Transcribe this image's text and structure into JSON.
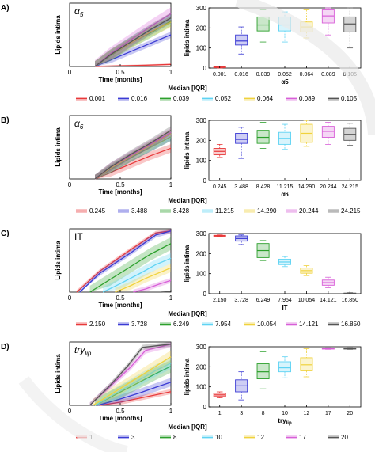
{
  "chart_data": [
    {
      "panel": "A)",
      "param_label": "α5",
      "line_plot": {
        "type": "line",
        "xlabel": "Time [months]",
        "ylabel": "Lipids intima",
        "xticks": [
          0,
          0.5,
          1
        ],
        "yticks": [],
        "xlim": [
          0,
          1
        ],
        "ylim": [
          0,
          300
        ],
        "series": [
          {
            "color": "#e8393a",
            "band": 4,
            "x": [
              0.25,
              0.5,
              0.75,
              1.0
            ],
            "y": [
              0,
              3,
              6,
              10
            ]
          },
          {
            "color": "#3b3bd4",
            "band": 15,
            "x": [
              0.25,
              0.4,
              0.6,
              0.8,
              1.0
            ],
            "y": [
              0,
              30,
              70,
              110,
              150
            ]
          },
          {
            "color": "#2ca02c",
            "band": 25,
            "x": [
              0.25,
              0.4,
              0.6,
              0.8,
              1.0
            ],
            "y": [
              0,
              50,
              110,
              160,
              215
            ]
          },
          {
            "color": "#5fd3f3",
            "band": 25,
            "x": [
              0.25,
              0.4,
              0.6,
              0.8,
              1.0
            ],
            "y": [
              0,
              55,
              115,
              170,
              225
            ]
          },
          {
            "color": "#f0d23c",
            "band": 25,
            "x": [
              0.25,
              0.4,
              0.6,
              0.8,
              1.0
            ],
            "y": [
              0,
              55,
              110,
              165,
              210
            ]
          },
          {
            "color": "#d85fd8",
            "band": 30,
            "x": [
              0.25,
              0.4,
              0.6,
              0.8,
              1.0
            ],
            "y": [
              0,
              60,
              125,
              190,
              250
            ]
          },
          {
            "color": "#555555",
            "band": 25,
            "x": [
              0.25,
              0.4,
              0.6,
              0.8,
              1.0
            ],
            "y": [
              0,
              55,
              115,
              175,
              230
            ]
          }
        ]
      },
      "box_plot": {
        "type": "box",
        "ylabel": "lipids intima",
        "xlabel": "α5",
        "ylim": [
          0,
          300
        ],
        "yticks": [
          0,
          100,
          200,
          300
        ],
        "categories": [
          "0.001",
          "0.016",
          "0.039",
          "0.052",
          "0.064",
          "0.089",
          "0.105"
        ],
        "colors": [
          "#e8393a",
          "#3b3bd4",
          "#2ca02c",
          "#5fd3f3",
          "#f0d23c",
          "#d85fd8",
          "#555555"
        ],
        "boxes": [
          {
            "min": 0,
            "q1": 2,
            "median": 5,
            "q3": 8,
            "max": 10
          },
          {
            "min": 70,
            "q1": 115,
            "median": 135,
            "q3": 165,
            "max": 205
          },
          {
            "min": 130,
            "q1": 185,
            "median": 215,
            "q3": 255,
            "max": 290
          },
          {
            "min": 130,
            "q1": 185,
            "median": 215,
            "q3": 255,
            "max": 280
          },
          {
            "min": 150,
            "q1": 180,
            "median": 205,
            "q3": 230,
            "max": 290
          },
          {
            "min": 165,
            "q1": 225,
            "median": 260,
            "q3": 290,
            "max": 300
          },
          {
            "min": 100,
            "q1": 180,
            "median": 220,
            "q3": 255,
            "max": 300
          }
        ]
      },
      "legend": {
        "title": "Median [IQR]",
        "entries": [
          "0.001",
          "0.016",
          "0.039",
          "0.052",
          "0.064",
          "0.089",
          "0.105"
        ]
      }
    },
    {
      "panel": "B)",
      "param_label": "α6",
      "line_plot": {
        "type": "line",
        "xlabel": "Time [months]",
        "ylabel": "Lipids intima",
        "xticks": [
          0,
          0.5,
          1
        ],
        "yticks": [],
        "xlim": [
          0,
          1
        ],
        "ylim": [
          0,
          300
        ],
        "series": [
          {
            "color": "#e8393a",
            "band": 20,
            "x": [
              0.25,
              0.4,
              0.6,
              0.8,
              1.0
            ],
            "y": [
              0,
              30,
              70,
              110,
              145
            ]
          },
          {
            "color": "#3b3bd4",
            "band": 20,
            "x": [
              0.25,
              0.4,
              0.6,
              0.8,
              1.0
            ],
            "y": [
              0,
              45,
              100,
              150,
              200
            ]
          },
          {
            "color": "#2ca02c",
            "band": 20,
            "x": [
              0.25,
              0.4,
              0.6,
              0.8,
              1.0
            ],
            "y": [
              0,
              45,
              100,
              150,
              200
            ]
          },
          {
            "color": "#5fd3f3",
            "band": 20,
            "x": [
              0.25,
              0.4,
              0.6,
              0.8,
              1.0
            ],
            "y": [
              0,
              50,
              105,
              160,
              210
            ]
          },
          {
            "color": "#f0d23c",
            "band": 20,
            "x": [
              0.25,
              0.4,
              0.6,
              0.8,
              1.0
            ],
            "y": [
              0,
              50,
              105,
              160,
              215
            ]
          },
          {
            "color": "#d85fd8",
            "band": 20,
            "x": [
              0.25,
              0.4,
              0.6,
              0.8,
              1.0
            ],
            "y": [
              0,
              55,
              110,
              165,
              220
            ]
          },
          {
            "color": "#555555",
            "band": 20,
            "x": [
              0.25,
              0.4,
              0.6,
              0.8,
              1.0
            ],
            "y": [
              0,
              55,
              115,
              170,
              230
            ]
          }
        ]
      },
      "box_plot": {
        "type": "box",
        "ylabel": "lipids intima",
        "xlabel": "α6",
        "ylim": [
          0,
          300
        ],
        "yticks": [
          0,
          100,
          200,
          300
        ],
        "categories": [
          "0.245",
          "3.488",
          "8.428",
          "11.215",
          "14.290",
          "20.244",
          "24.215"
        ],
        "colors": [
          "#e8393a",
          "#3b3bd4",
          "#2ca02c",
          "#5fd3f3",
          "#f0d23c",
          "#d85fd8",
          "#555555"
        ],
        "boxes": [
          {
            "min": 115,
            "q1": 128,
            "median": 145,
            "q3": 160,
            "max": 180
          },
          {
            "min": 110,
            "q1": 185,
            "median": 205,
            "q3": 235,
            "max": 265
          },
          {
            "min": 160,
            "q1": 185,
            "median": 215,
            "q3": 250,
            "max": 290
          },
          {
            "min": 155,
            "q1": 180,
            "median": 210,
            "q3": 240,
            "max": 280
          },
          {
            "min": 170,
            "q1": 190,
            "median": 235,
            "q3": 280,
            "max": 300
          },
          {
            "min": 180,
            "q1": 215,
            "median": 245,
            "q3": 270,
            "max": 290
          },
          {
            "min": 175,
            "q1": 200,
            "median": 230,
            "q3": 260,
            "max": 285
          }
        ]
      },
      "legend": {
        "title": "Median [IQR]",
        "entries": [
          "0.245",
          "3.488",
          "8.428",
          "11.215",
          "14.290",
          "20.244",
          "24.215"
        ]
      }
    },
    {
      "panel": "C)",
      "param_label": "IT",
      "line_plot": {
        "type": "line",
        "xlabel": "Time [months]",
        "ylabel": "Lipids intima",
        "xticks": [
          0,
          0.5,
          1
        ],
        "yticks": [],
        "xlim": [
          0,
          1
        ],
        "ylim": [
          0,
          300
        ],
        "series": [
          {
            "color": "#e8393a",
            "band": 10,
            "x": [
              0.07,
              0.3,
              0.6,
              0.85,
              1.0
            ],
            "y": [
              0,
              100,
              200,
              280,
              290
            ]
          },
          {
            "color": "#3b3bd4",
            "band": 12,
            "x": [
              0.1,
              0.3,
              0.6,
              0.85,
              1.0
            ],
            "y": [
              0,
              90,
              185,
              270,
              290
            ]
          },
          {
            "color": "#2ca02c",
            "band": 30,
            "x": [
              0.2,
              0.4,
              0.6,
              0.8,
              1.0
            ],
            "y": [
              0,
              60,
              120,
              180,
              230
            ]
          },
          {
            "color": "#5fd3f3",
            "band": 25,
            "x": [
              0.33,
              0.5,
              0.7,
              0.85,
              1.0
            ],
            "y": [
              0,
              40,
              90,
              130,
              160
            ]
          },
          {
            "color": "#f0d23c",
            "band": 20,
            "x": [
              0.45,
              0.6,
              0.75,
              0.9,
              1.0
            ],
            "y": [
              0,
              30,
              65,
              95,
              115
            ]
          },
          {
            "color": "#d85fd8",
            "band": 12,
            "x": [
              0.63,
              0.75,
              0.9,
              1.0
            ],
            "y": [
              0,
              15,
              40,
              55
            ]
          },
          {
            "color": "#555555",
            "band": 3,
            "x": [
              0.9,
              0.95,
              1.0
            ],
            "y": [
              0,
              1,
              2
            ]
          }
        ]
      },
      "box_plot": {
        "type": "box",
        "ylabel": "lipids intima",
        "xlabel": "IT",
        "ylim": [
          0,
          300
        ],
        "yticks": [
          0,
          100,
          200,
          300
        ],
        "categories": [
          "2.150",
          "3.728",
          "6.249",
          "7.954",
          "10.054",
          "14.121",
          "16.850"
        ],
        "colors": [
          "#e8393a",
          "#3b3bd4",
          "#2ca02c",
          "#5fd3f3",
          "#f0d23c",
          "#d85fd8",
          "#555555"
        ],
        "boxes": [
          {
            "min": 285,
            "q1": 287,
            "median": 289,
            "q3": 291,
            "max": 293
          },
          {
            "min": 245,
            "q1": 262,
            "median": 275,
            "q3": 288,
            "max": 293
          },
          {
            "min": 165,
            "q1": 180,
            "median": 215,
            "q3": 250,
            "max": 265
          },
          {
            "min": 135,
            "q1": 145,
            "median": 158,
            "q3": 172,
            "max": 185
          },
          {
            "min": 90,
            "q1": 102,
            "median": 115,
            "q3": 128,
            "max": 140
          },
          {
            "min": 30,
            "q1": 42,
            "median": 55,
            "q3": 68,
            "max": 82
          },
          {
            "min": 0,
            "q1": 1,
            "median": 2,
            "q3": 3,
            "max": 5
          }
        ]
      },
      "legend": {
        "title": "Median [IQR]",
        "entries": [
          "2.150",
          "3.728",
          "6.249",
          "7.954",
          "10.054",
          "14.121",
          "16.850"
        ]
      }
    },
    {
      "panel": "D)",
      "param_label": "try_lip",
      "line_plot": {
        "type": "line",
        "xlabel": "Time [months]",
        "ylabel": "Lipids intima",
        "xticks": [
          0,
          0.5,
          1
        ],
        "yticks": [],
        "xlim": [
          0,
          1
        ],
        "ylim": [
          0,
          300
        ],
        "series": [
          {
            "color": "#e8393a",
            "band": 12,
            "x": [
              0.3,
              0.5,
              0.7,
              0.85,
              1.0
            ],
            "y": [
              0,
              15,
              35,
              50,
              65
            ]
          },
          {
            "color": "#3b3bd4",
            "band": 20,
            "x": [
              0.28,
              0.5,
              0.7,
              0.85,
              1.0
            ],
            "y": [
              0,
              30,
              60,
              85,
              110
            ]
          },
          {
            "color": "#2ca02c",
            "band": 30,
            "x": [
              0.25,
              0.45,
              0.65,
              0.85,
              1.0
            ],
            "y": [
              0,
              50,
              100,
              150,
              185
            ]
          },
          {
            "color": "#5fd3f3",
            "band": 28,
            "x": [
              0.25,
              0.45,
              0.65,
              0.85,
              1.0
            ],
            "y": [
              0,
              55,
              110,
              165,
              200
            ]
          },
          {
            "color": "#f0d23c",
            "band": 30,
            "x": [
              0.23,
              0.45,
              0.65,
              0.85,
              1.0
            ],
            "y": [
              0,
              65,
              125,
              185,
              230
            ]
          },
          {
            "color": "#d85fd8",
            "band": 15,
            "x": [
              0.2,
              0.4,
              0.6,
              0.75,
              1.0
            ],
            "y": [
              0,
              90,
              180,
              260,
              290
            ]
          },
          {
            "color": "#555555",
            "band": 12,
            "x": [
              0.2,
              0.4,
              0.58,
              0.72,
              1.0
            ],
            "y": [
              0,
              95,
              190,
              275,
              290
            ]
          }
        ]
      },
      "box_plot": {
        "type": "box",
        "ylabel": "lipids intima",
        "xlabel": "try_lip",
        "ylim": [
          0,
          300
        ],
        "yticks": [
          0,
          100,
          200,
          300
        ],
        "categories": [
          "1",
          "3",
          "8",
          "10",
          "12",
          "17",
          "20"
        ],
        "colors": [
          "#e8393a",
          "#3b3bd4",
          "#2ca02c",
          "#5fd3f3",
          "#f0d23c",
          "#d85fd8",
          "#555555"
        ],
        "boxes": [
          {
            "min": 45,
            "q1": 52,
            "median": 60,
            "q3": 68,
            "max": 75
          },
          {
            "min": 35,
            "q1": 75,
            "median": 105,
            "q3": 135,
            "max": 175
          },
          {
            "min": 90,
            "q1": 140,
            "median": 175,
            "q3": 215,
            "max": 275
          },
          {
            "min": 145,
            "q1": 175,
            "median": 195,
            "q3": 225,
            "max": 250
          },
          {
            "min": 150,
            "q1": 180,
            "median": 210,
            "q3": 245,
            "max": 290
          },
          {
            "min": 287,
            "q1": 289,
            "median": 291,
            "q3": 293,
            "max": 295
          },
          {
            "min": 287,
            "q1": 289,
            "median": 291,
            "q3": 293,
            "max": 295
          }
        ]
      },
      "legend": {
        "title": "Median [IQR]",
        "entries": [
          "1",
          "3",
          "8",
          "10",
          "12",
          "17",
          "20"
        ]
      }
    }
  ]
}
